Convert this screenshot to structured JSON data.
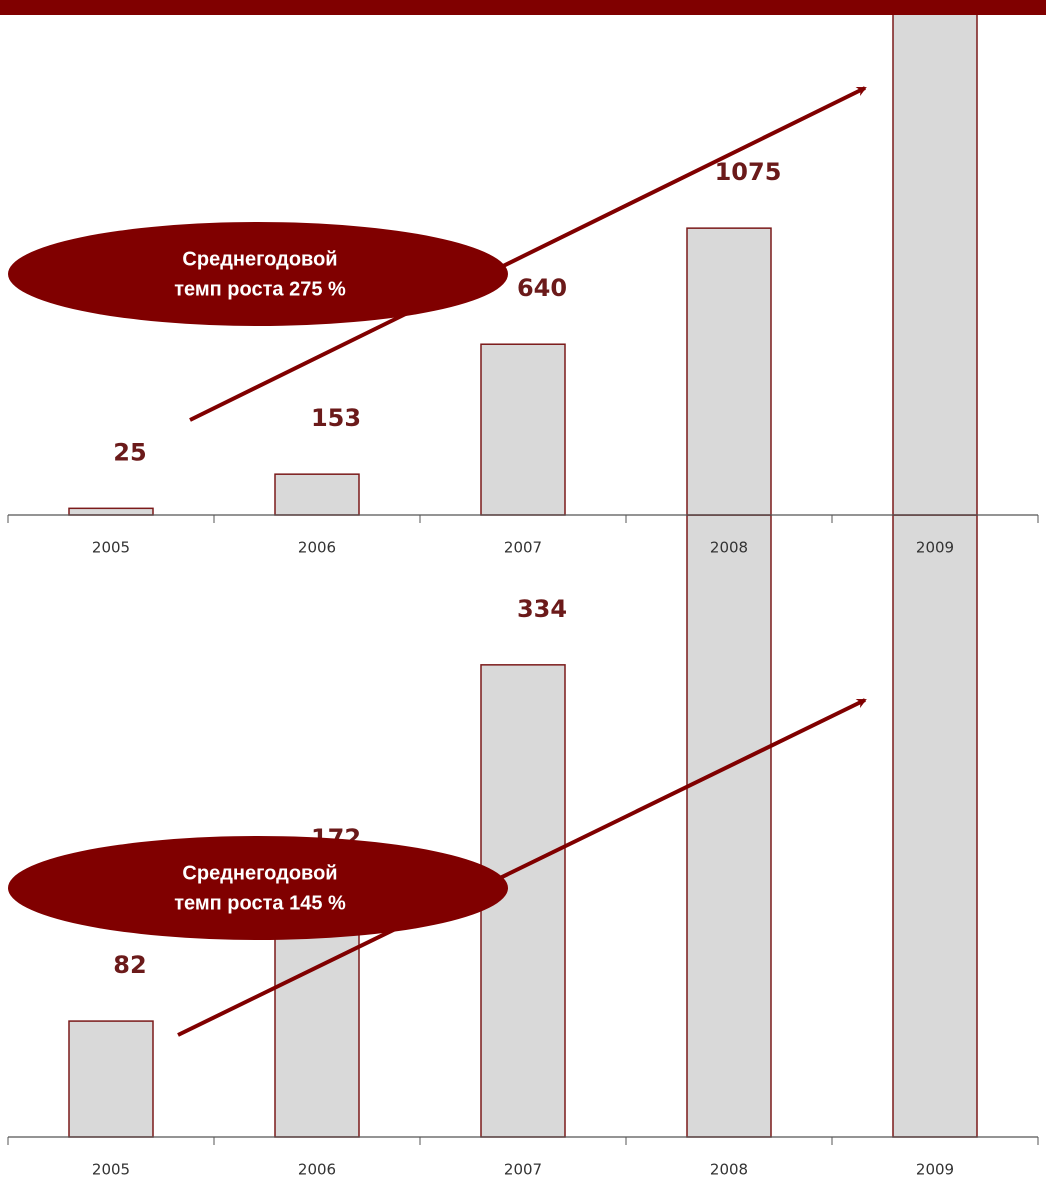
{
  "chart_data": [
    {
      "type": "bar",
      "categories": [
        "2005",
        "2006",
        "2007",
        "2008",
        "2009"
      ],
      "values": [
        82,
        172,
        334,
        440,
        440
      ],
      "value_labels": [
        "82",
        "172",
        "334",
        null,
        null
      ],
      "color": "#d9d9d9",
      "edge_color": "#7b1a1a",
      "ylim": [
        0,
        440
      ],
      "annotation": [
        "Среднегодовой",
        "темп роста 145 %"
      ]
    },
    {
      "type": "bar",
      "categories": [
        "2005",
        "2006",
        "2007",
        "2008",
        "2009"
      ],
      "values": [
        25,
        153,
        640,
        1075,
        1910
      ],
      "value_labels": [
        "25",
        "153",
        "640",
        "1075",
        null
      ],
      "color": "#d9d9d9",
      "edge_color": "#7b1a1a",
      "ylim": [
        0,
        1930
      ],
      "annotation": [
        "Среднегодовой",
        "темп роста  275 %"
      ]
    }
  ]
}
